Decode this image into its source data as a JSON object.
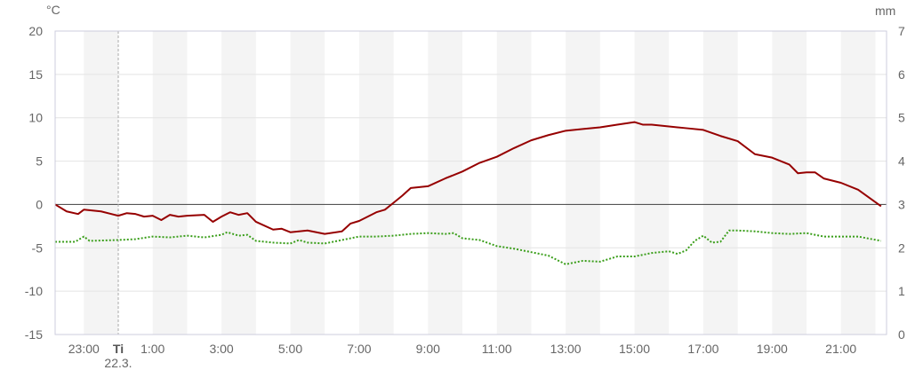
{
  "chart_data": {
    "type": "line",
    "left_axis": {
      "unit": "°C",
      "ylim": [
        -15,
        20
      ],
      "ticks": [
        20,
        15,
        10,
        5,
        0,
        -5,
        -10,
        -15
      ]
    },
    "right_axis": {
      "unit": "mm",
      "ylim": [
        0,
        7
      ],
      "ticks": [
        7,
        6,
        5,
        4,
        3,
        2,
        1,
        0
      ]
    },
    "x_tick_labels": [
      "23:00",
      "1:00",
      "3:00",
      "5:00",
      "7:00",
      "9:00",
      "11:00",
      "13:00",
      "15:00",
      "17:00",
      "19:00",
      "21:00"
    ],
    "day_marker": {
      "day": "Ti",
      "date": "22.3.",
      "time": "0:00"
    },
    "grid": true,
    "shaded_hours": "alternating hourly bands",
    "colors": {
      "series1": "#960000",
      "series2": "#3a9e1a",
      "band": "#f4f4f4",
      "grid": "#e4e4e4",
      "zero_line": "#555555"
    },
    "series": [
      {
        "axis": "left",
        "style": "solid",
        "points": [
          [
            "22:10",
            0
          ],
          [
            "22:30",
            -0.8
          ],
          [
            "22:50",
            -1.1
          ],
          [
            "23:00",
            -0.6
          ],
          [
            "23:30",
            -0.8
          ],
          [
            "0:00",
            -1.3
          ],
          [
            "0:15",
            -1.0
          ],
          [
            "0:30",
            -1.1
          ],
          [
            "0:45",
            -1.4
          ],
          [
            "1:00",
            -1.3
          ],
          [
            "1:15",
            -1.8
          ],
          [
            "1:30",
            -1.2
          ],
          [
            "1:45",
            -1.4
          ],
          [
            "2:00",
            -1.3
          ],
          [
            "2:30",
            -1.2
          ],
          [
            "2:45",
            -2.0
          ],
          [
            "3:00",
            -1.4
          ],
          [
            "3:15",
            -0.9
          ],
          [
            "3:30",
            -1.2
          ],
          [
            "3:45",
            -1.0
          ],
          [
            "4:00",
            -2.0
          ],
          [
            "4:30",
            -2.9
          ],
          [
            "4:45",
            -2.8
          ],
          [
            "5:00",
            -3.2
          ],
          [
            "5:30",
            -3.0
          ],
          [
            "6:00",
            -3.4
          ],
          [
            "6:30",
            -3.1
          ],
          [
            "6:45",
            -2.2
          ],
          [
            "7:00",
            -1.9
          ],
          [
            "7:30",
            -0.9
          ],
          [
            "7:45",
            -0.6
          ],
          [
            "8:00",
            0.2
          ],
          [
            "8:15",
            1.0
          ],
          [
            "8:30",
            1.9
          ],
          [
            "9:00",
            2.1
          ],
          [
            "9:30",
            3.0
          ],
          [
            "10:00",
            3.8
          ],
          [
            "10:30",
            4.8
          ],
          [
            "11:00",
            5.5
          ],
          [
            "11:30",
            6.5
          ],
          [
            "12:00",
            7.4
          ],
          [
            "12:30",
            8.0
          ],
          [
            "13:00",
            8.5
          ],
          [
            "13:30",
            8.7
          ],
          [
            "14:00",
            8.9
          ],
          [
            "14:30",
            9.2
          ],
          [
            "15:00",
            9.5
          ],
          [
            "15:15",
            9.2
          ],
          [
            "15:30",
            9.2
          ],
          [
            "16:00",
            9.0
          ],
          [
            "16:30",
            8.8
          ],
          [
            "17:00",
            8.6
          ],
          [
            "17:30",
            7.9
          ],
          [
            "18:00",
            7.3
          ],
          [
            "18:30",
            5.8
          ],
          [
            "19:00",
            5.4
          ],
          [
            "19:30",
            4.6
          ],
          [
            "19:45",
            3.6
          ],
          [
            "20:00",
            3.7
          ],
          [
            "20:15",
            3.7
          ],
          [
            "20:30",
            3.0
          ],
          [
            "21:00",
            2.5
          ],
          [
            "21:30",
            1.7
          ],
          [
            "22:10",
            -0.2
          ]
        ]
      },
      {
        "axis": "left",
        "style": "dotted",
        "points": [
          [
            "22:10",
            -4.3
          ],
          [
            "22:45",
            -4.3
          ],
          [
            "23:00",
            -3.7
          ],
          [
            "23:10",
            -4.2
          ],
          [
            "0:00",
            -4.1
          ],
          [
            "0:30",
            -4.0
          ],
          [
            "1:00",
            -3.7
          ],
          [
            "1:30",
            -3.8
          ],
          [
            "2:00",
            -3.6
          ],
          [
            "2:30",
            -3.8
          ],
          [
            "3:00",
            -3.5
          ],
          [
            "3:10",
            -3.2
          ],
          [
            "3:30",
            -3.6
          ],
          [
            "3:45",
            -3.5
          ],
          [
            "4:00",
            -4.2
          ],
          [
            "4:30",
            -4.4
          ],
          [
            "5:00",
            -4.5
          ],
          [
            "5:15",
            -4.1
          ],
          [
            "5:30",
            -4.4
          ],
          [
            "6:00",
            -4.5
          ],
          [
            "6:30",
            -4.1
          ],
          [
            "7:00",
            -3.7
          ],
          [
            "7:30",
            -3.7
          ],
          [
            "8:00",
            -3.6
          ],
          [
            "8:30",
            -3.4
          ],
          [
            "9:00",
            -3.3
          ],
          [
            "9:30",
            -3.4
          ],
          [
            "9:45",
            -3.3
          ],
          [
            "10:00",
            -3.9
          ],
          [
            "10:30",
            -4.1
          ],
          [
            "11:00",
            -4.8
          ],
          [
            "11:30",
            -5.1
          ],
          [
            "12:00",
            -5.5
          ],
          [
            "12:30",
            -5.9
          ],
          [
            "13:00",
            -6.9
          ],
          [
            "13:30",
            -6.5
          ],
          [
            "14:00",
            -6.6
          ],
          [
            "14:30",
            -6.0
          ],
          [
            "15:00",
            -6.0
          ],
          [
            "15:30",
            -5.6
          ],
          [
            "16:00",
            -5.4
          ],
          [
            "16:15",
            -5.7
          ],
          [
            "16:30",
            -5.3
          ],
          [
            "16:45",
            -4.2
          ],
          [
            "17:00",
            -3.6
          ],
          [
            "17:15",
            -4.4
          ],
          [
            "17:30",
            -4.3
          ],
          [
            "17:45",
            -3.0
          ],
          [
            "18:00",
            -3.0
          ],
          [
            "18:30",
            -3.1
          ],
          [
            "19:00",
            -3.3
          ],
          [
            "19:30",
            -3.4
          ],
          [
            "20:00",
            -3.3
          ],
          [
            "20:30",
            -3.7
          ],
          [
            "21:00",
            -3.7
          ],
          [
            "21:30",
            -3.7
          ],
          [
            "22:10",
            -4.2
          ]
        ]
      }
    ]
  }
}
